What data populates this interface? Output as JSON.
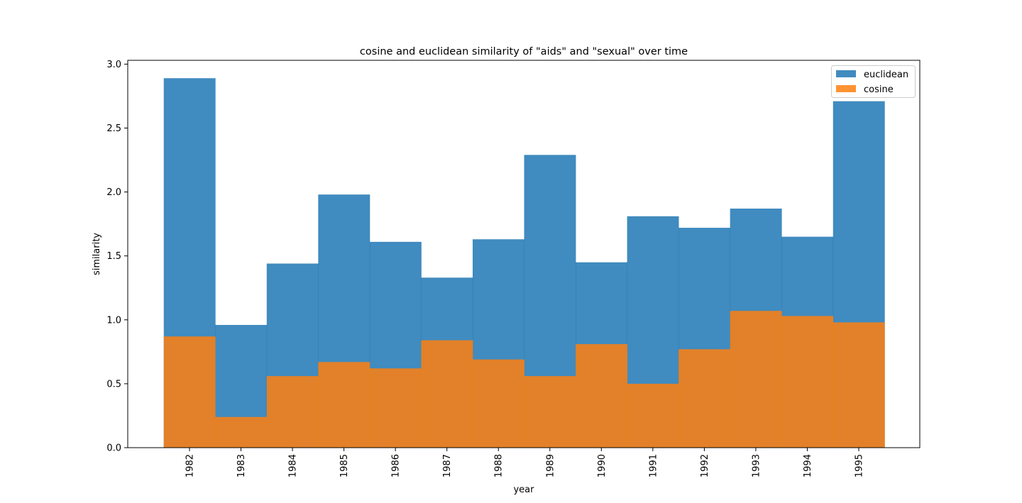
{
  "chart_data": {
    "type": "bar",
    "title": "cosine and euclidean similarity of \"aids\" and \"sexual\" over time",
    "xlabel": "year",
    "ylabel": "similarity",
    "categories": [
      "1982",
      "1983",
      "1984",
      "1985",
      "1986",
      "1987",
      "1988",
      "1989",
      "1990",
      "1991",
      "1992",
      "1993",
      "1994",
      "1995"
    ],
    "ylim": [
      0,
      3.03
    ],
    "yticks": [
      "0.0",
      "0.5",
      "1.0",
      "1.5",
      "2.0",
      "2.5",
      "3.0"
    ],
    "grid": false,
    "legend_position": "top-right",
    "series": [
      {
        "name": "euclidean",
        "color": "#1f77b4",
        "values": [
          2.89,
          0.96,
          1.44,
          1.98,
          1.61,
          1.33,
          1.63,
          2.29,
          1.45,
          1.81,
          1.72,
          1.87,
          1.65,
          2.71
        ]
      },
      {
        "name": "cosine",
        "color": "#ff7f0e",
        "values": [
          0.87,
          0.24,
          0.56,
          0.67,
          0.62,
          0.84,
          0.69,
          0.56,
          0.81,
          0.5,
          0.77,
          1.07,
          1.03,
          0.98
        ]
      }
    ]
  }
}
